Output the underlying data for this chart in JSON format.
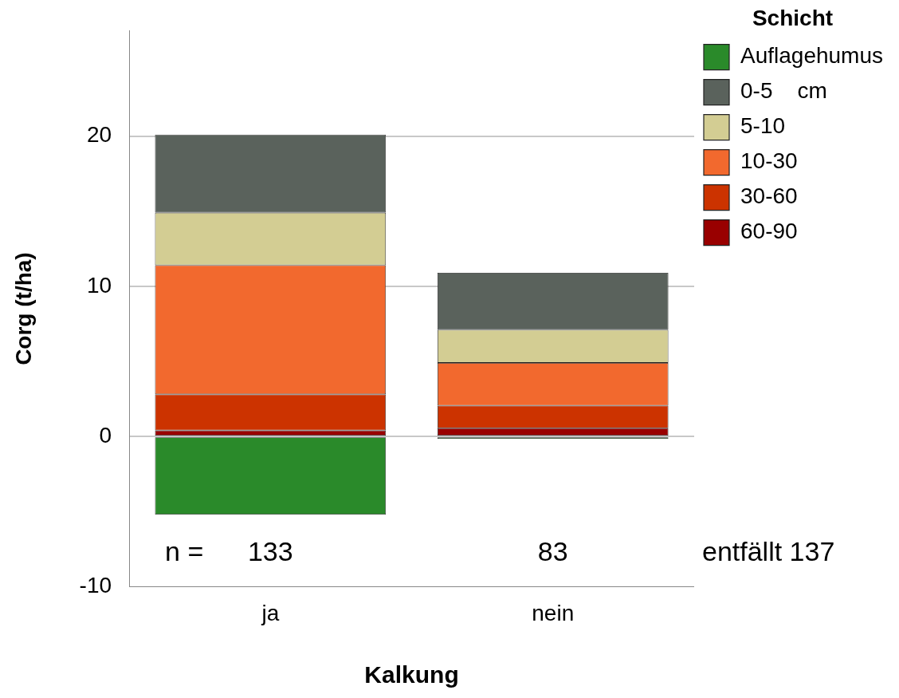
{
  "chart_data": {
    "type": "bar",
    "stacked": true,
    "xlabel": "Kalkung",
    "ylabel": "Corg (t/ha)",
    "legend_title": "Schicht",
    "legend": "top right",
    "grid": "y",
    "categories": [
      "ja",
      "nein"
    ],
    "ylim": [
      -10,
      27
    ],
    "yticks": [
      -10,
      0,
      10,
      20
    ],
    "series": [
      {
        "name": "60-90",
        "color": "#990000",
        "values": [
          0.4,
          0.55
        ]
      },
      {
        "name": "30-60",
        "color": "#cc3300",
        "values": [
          2.4,
          1.5
        ]
      },
      {
        "name": "10-30",
        "color": "#f2692e",
        "values": [
          8.6,
          2.85
        ]
      },
      {
        "name": "5-10",
        "color": "#d3cd93",
        "values": [
          3.5,
          2.2
        ]
      },
      {
        "name": "0-5    cm",
        "color": "#5a625c",
        "values": [
          5.2,
          3.8
        ]
      },
      {
        "name": "Auflagehumus",
        "color": "#2a8a2a",
        "values": [
          -5.2,
          -0.15
        ]
      }
    ],
    "annotations": [
      "n =",
      "133",
      "83",
      "entfällt 137"
    ]
  }
}
